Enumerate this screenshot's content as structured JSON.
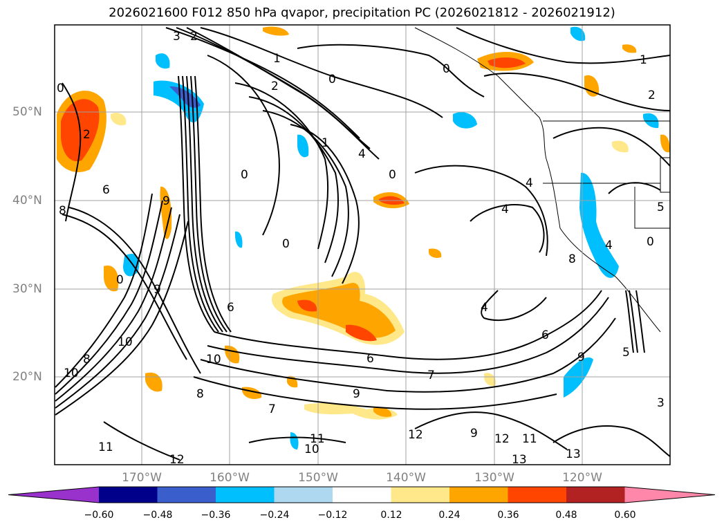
{
  "title": "2026021600 F012 850 hPa qvapor, precipitation PC (2026021812 - 2026021912)",
  "lat_labels": [
    "50°N",
    "40°N",
    "30°N",
    "20°N"
  ],
  "lon_labels": [
    "170°W",
    "160°W",
    "150°W",
    "140°W",
    "130°W",
    "120°W"
  ],
  "colorbar": {
    "ticks": [
      "−0.60",
      "−0.48",
      "−0.36",
      "−0.24",
      "−0.12",
      "0.12",
      "0.24",
      "0.36",
      "0.48",
      "0.60"
    ],
    "colors": [
      "#9932cc",
      "#00008b",
      "#3a5fcd",
      "#00bfff",
      "#add8f0",
      "#ffffff",
      "#ffe88a",
      "#ffa500",
      "#ff4500",
      "#b22222",
      "#ff88aa"
    ]
  },
  "contour_labels": [
    "3",
    "2",
    "0",
    "1",
    "0",
    "1",
    "2",
    "0",
    "4",
    "0",
    "0",
    "6",
    "9",
    "8",
    "9",
    "10",
    "10",
    "8",
    "10",
    "9",
    "7",
    "6",
    "4",
    "6",
    "8",
    "7",
    "9",
    "10",
    "11",
    "12",
    "11",
    "12",
    "13",
    "13",
    "9",
    "12",
    "11",
    "0",
    "4",
    "5",
    "4",
    "8",
    "5",
    "3",
    "1",
    "2",
    "6",
    "4",
    "0",
    "2",
    "0"
  ]
}
